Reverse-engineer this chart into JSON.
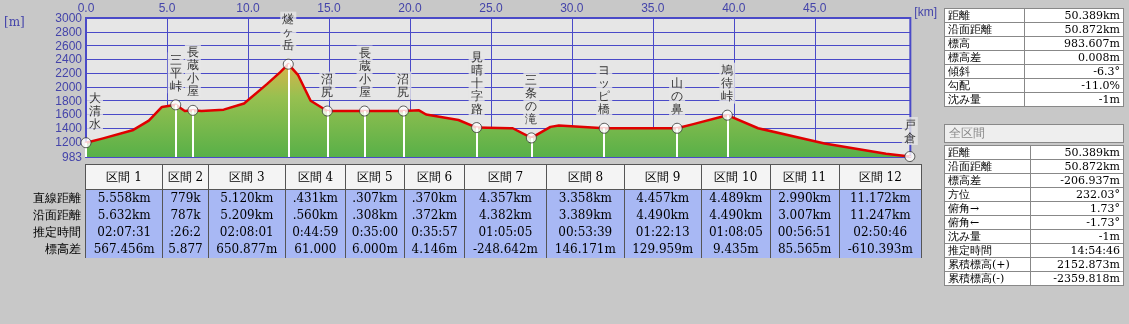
{
  "chart_data": [
    {
      "type": "area",
      "xlabel": "[km]",
      "ylabel": "[m]",
      "xlim": [
        0,
        50.9
      ],
      "ylim": [
        983,
        3000
      ],
      "xticks": [
        {
          "value": 0,
          "label": "0.0"
        },
        {
          "value": 5,
          "label": "5.0"
        },
        {
          "value": 10,
          "label": "10.0"
        },
        {
          "value": 15,
          "label": "15.0"
        },
        {
          "value": 20,
          "label": "20.0"
        },
        {
          "value": 25,
          "label": "25.0"
        },
        {
          "value": 30,
          "label": "30.0"
        },
        {
          "value": 35,
          "label": "35.0"
        },
        {
          "value": 40,
          "label": "40.0"
        },
        {
          "value": 45,
          "label": "45.0"
        }
      ],
      "yticks": [
        983,
        1200,
        1400,
        1600,
        1800,
        2000,
        2200,
        2400,
        2600,
        2800,
        3000
      ],
      "grid": true,
      "marker": "none",
      "line_style": "solid",
      "series": [
        {
          "color": "#e00000",
          "x": [
            0,
            1,
            2.87,
            3.88,
            4.69,
            5.54,
            6.1,
            6.6,
            7.13,
            8.5,
            9.76,
            11.17,
            11.98,
            12.49,
            13.1,
            13.87,
            14.9,
            17.2,
            19.6,
            20.56,
            21.0,
            23.0,
            24.12,
            26.35,
            27.5,
            28.68,
            29.2,
            32.0,
            36.5,
            37.5,
            39.6,
            41.5,
            45.6,
            49.4,
            50.87
          ],
          "values": [
            1190,
            1250,
            1370,
            1510,
            1710,
            1740,
            1650,
            1660,
            1650,
            1670,
            1760,
            2040,
            2210,
            2330,
            2170,
            1800,
            1650,
            1650,
            1650,
            1660,
            1600,
            1520,
            1410,
            1400,
            1260,
            1420,
            1440,
            1400,
            1400,
            1460,
            1590,
            1400,
            1180,
            1030,
            990
          ]
        }
      ],
      "annotations": [
        {
          "text": "大清水",
          "x": 0,
          "y": 1190
        },
        {
          "text": "三平峠",
          "x": 5.54,
          "y": 1740
        },
        {
          "text": "長蔵小屋",
          "x": 6.6,
          "y": 1660
        },
        {
          "text": "燧ヶ岳",
          "x": 12.49,
          "y": 2330
        },
        {
          "text": "沼尻",
          "x": 14.9,
          "y": 1650
        },
        {
          "text": "長蔵小屋",
          "x": 17.2,
          "y": 1650
        },
        {
          "text": "沼尻",
          "x": 19.6,
          "y": 1650
        },
        {
          "text": "見晴十字路",
          "x": 24.12,
          "y": 1410
        },
        {
          "text": "三条の滝",
          "x": 27.5,
          "y": 1260
        },
        {
          "text": "ヨッピ橋",
          "x": 32.0,
          "y": 1400
        },
        {
          "text": "山の鼻",
          "x": 36.5,
          "y": 1400
        },
        {
          "text": "鳩待峠",
          "x": 39.6,
          "y": 1590
        },
        {
          "text": "戸倉",
          "x": 50.87,
          "y": 990
        }
      ]
    },
    {
      "type": "other",
      "categories": [
        "区間 1",
        "区間 2",
        "区間 3",
        "区間 4",
        "区間 5",
        "区間 6",
        "区間 7",
        "区間 8",
        "区間 9",
        "区間 10",
        "区間 11",
        "区間 12"
      ],
      "y_categories": [
        "直線距離",
        "沿面距離",
        "推定時間",
        "標高差"
      ],
      "cell_labels": [
        [
          "5.558km",
          "779k",
          "5.120km",
          ".431km",
          ".307km",
          ".370km",
          "4.357km",
          "3.358km",
          "4.457km",
          "4.489km",
          "2.990km",
          "11.172km"
        ],
        [
          "5.632km",
          "787k",
          "5.209km",
          ".560km",
          ".308km",
          ".372km",
          "4.382km",
          "3.389km",
          "4.490km",
          "4.490km",
          "3.007km",
          "11.247km"
        ],
        [
          "02:07:31",
          ":26:2",
          "02:08:01",
          "0:44:59",
          "0:35:00",
          "0:35:57",
          "01:05:05",
          "00:53:39",
          "01:22:13",
          "01:08:05",
          "00:56:51",
          "02:50:46"
        ],
        [
          "567.456m",
          "5.877",
          "650.877m",
          "61.000",
          "6.000m",
          "4.146m",
          "-248.642m",
          "146.171m",
          "129.959m",
          "9.435m",
          "85.565m",
          "-610.393m"
        ]
      ]
    },
    {
      "type": "other",
      "y_categories": [
        "距離",
        "沿面距離",
        "標高",
        "標高差",
        "傾斜",
        "勾配",
        "沈み量"
      ],
      "cell_labels": [
        [
          "50.389km"
        ],
        [
          "50.872km"
        ],
        [
          "983.607m"
        ],
        [
          "0.008m"
        ],
        [
          "-6.3°"
        ],
        [
          "-11.0%"
        ],
        [
          "-1m"
        ]
      ]
    },
    {
      "type": "other",
      "title": "全区間",
      "y_categories": [
        "距離",
        "沿面距離",
        "標高差",
        "方位",
        "俯角→",
        "俯角←",
        "沈み量",
        "推定時間",
        "累積標高(+)",
        "累積標高(-)"
      ],
      "cell_labels": [
        [
          "50.389km"
        ],
        [
          "50.872km"
        ],
        [
          "-206.937m"
        ],
        [
          "232.03°"
        ],
        [
          "1.73°"
        ],
        [
          "-1.73°"
        ],
        [
          "-1m"
        ],
        [
          "14:54:46"
        ],
        [
          "2152.873m"
        ],
        [
          "-2359.818m"
        ]
      ]
    }
  ]
}
